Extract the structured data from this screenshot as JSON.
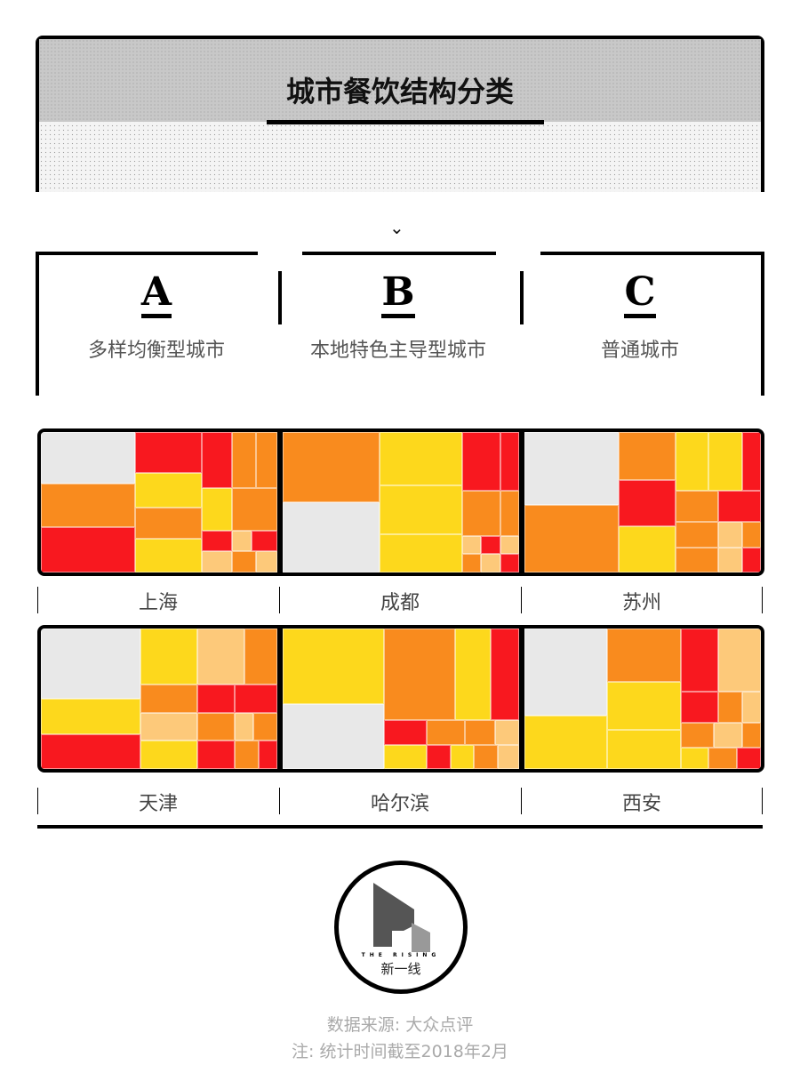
{
  "header": {
    "title": "城市餐饮结构分类"
  },
  "chevron_icon": "chevron-down-icon",
  "types": [
    {
      "letter": "A",
      "desc": "多样均衡型城市"
    },
    {
      "letter": "B",
      "desc": "本地特色主导型城市"
    },
    {
      "letter": "C",
      "desc": "普通城市"
    }
  ],
  "colors": {
    "gray": "#e8e8e8",
    "orange": "#f98b1e",
    "red": "#f8181f",
    "yellow": "#fdd81c",
    "light": "#fdc97a"
  },
  "cities": [
    "上海",
    "成都",
    "苏州",
    "天津",
    "哈尔滨",
    "西安"
  ],
  "logo": {
    "en": "THE RISING",
    "cn": "新一线"
  },
  "footer": {
    "source": "数据来源: 大众点评",
    "note": "注: 统计时间截至2018年2月"
  }
}
